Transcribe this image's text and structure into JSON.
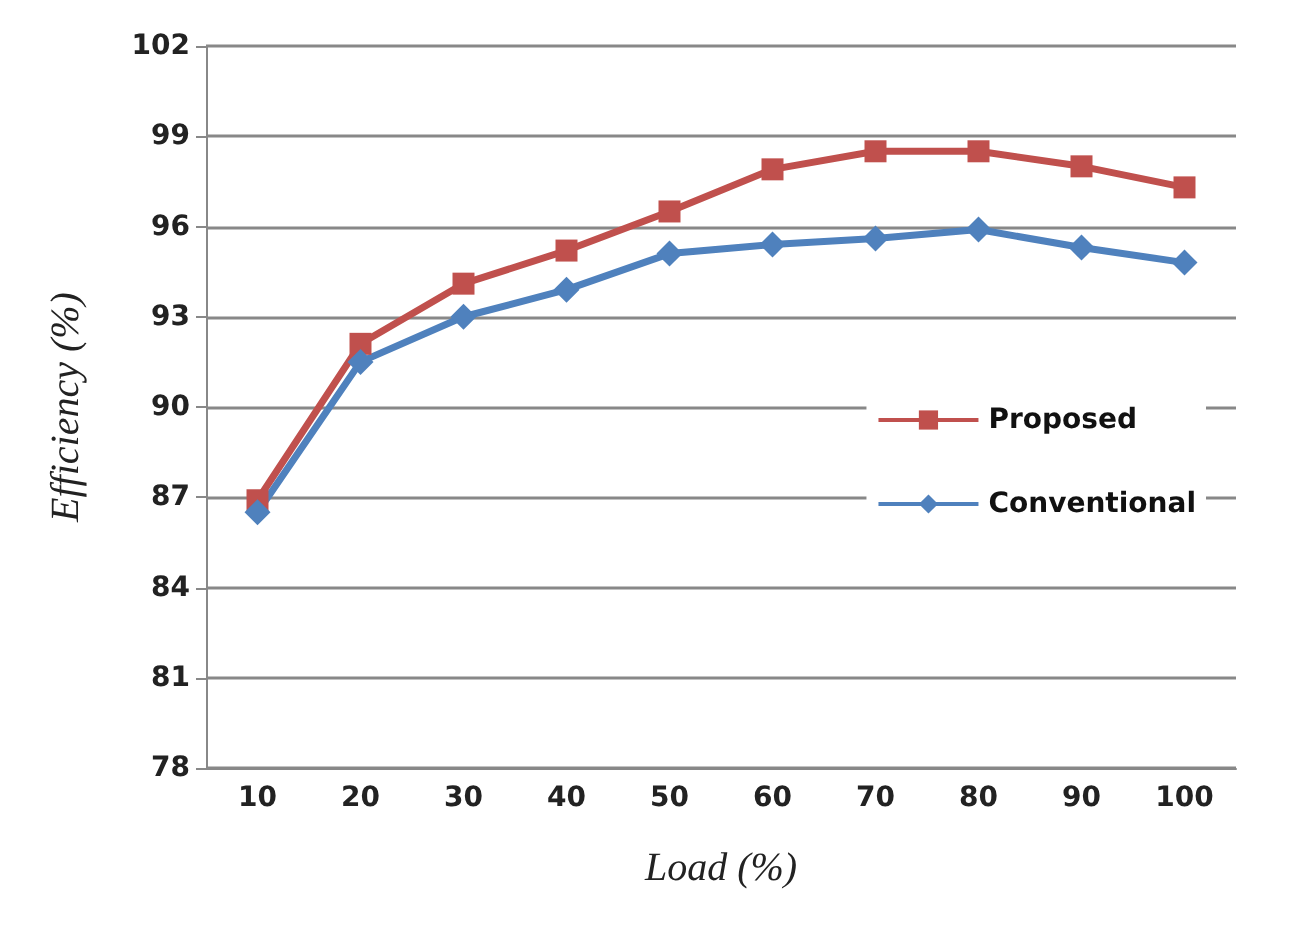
{
  "chart_data": {
    "type": "line",
    "xlabel": "Load (%)",
    "ylabel": "Efficiency (%)",
    "categories": [
      "10",
      "20",
      "30",
      "40",
      "50",
      "60",
      "70",
      "80",
      "90",
      "100"
    ],
    "series": [
      {
        "name": "Proposed",
        "color": "#c0504d",
        "marker": "square",
        "values": [
          86.9,
          92.1,
          94.1,
          95.2,
          96.5,
          97.9,
          98.5,
          98.5,
          98.0,
          97.3
        ]
      },
      {
        "name": "Conventional",
        "color": "#4f81bd",
        "marker": "diamond",
        "values": [
          86.5,
          91.5,
          93.0,
          93.9,
          95.1,
          95.4,
          95.6,
          95.9,
          95.3,
          94.8
        ]
      }
    ],
    "ylim": [
      78,
      102
    ],
    "yticks": [
      78,
      81,
      84,
      87,
      90,
      93,
      96,
      99,
      102
    ],
    "grid": "y",
    "legend": "right"
  }
}
